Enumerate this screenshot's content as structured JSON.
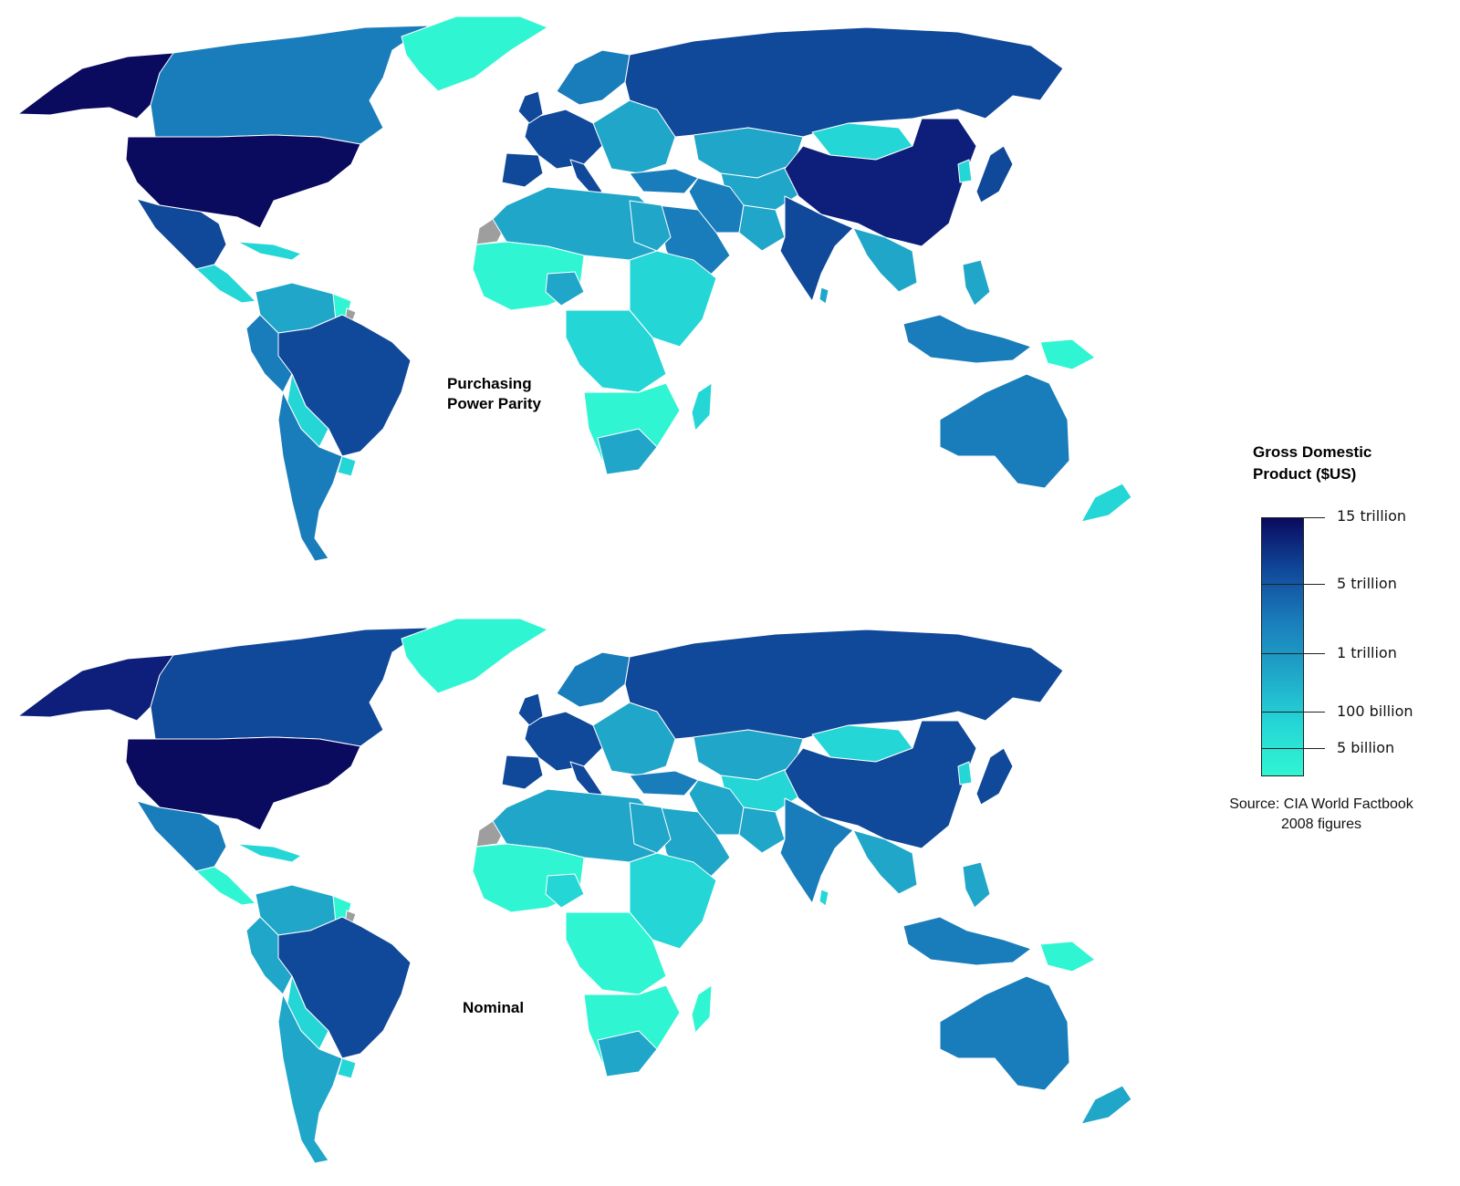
{
  "maps": {
    "top": {
      "label_line1": "Purchasing",
      "label_line2": "Power Parity"
    },
    "bottom": {
      "label": "Nominal"
    }
  },
  "legend": {
    "title_line1": "Gross Domestic",
    "title_line2": "Product ($US)",
    "ticks": [
      "15 trillion",
      "5 trillion",
      "1 trillion",
      "100 billion",
      "5 billion"
    ],
    "colors": [
      "#0a0a5e",
      "#10489a",
      "#1a7dbb",
      "#1fa6c9",
      "#25d6d6",
      "#30f5d3"
    ]
  },
  "source": {
    "line1": "Source: CIA World Factbook",
    "line2": "2008 figures"
  },
  "palette": {
    "no_data": "#9e9e9e"
  }
}
